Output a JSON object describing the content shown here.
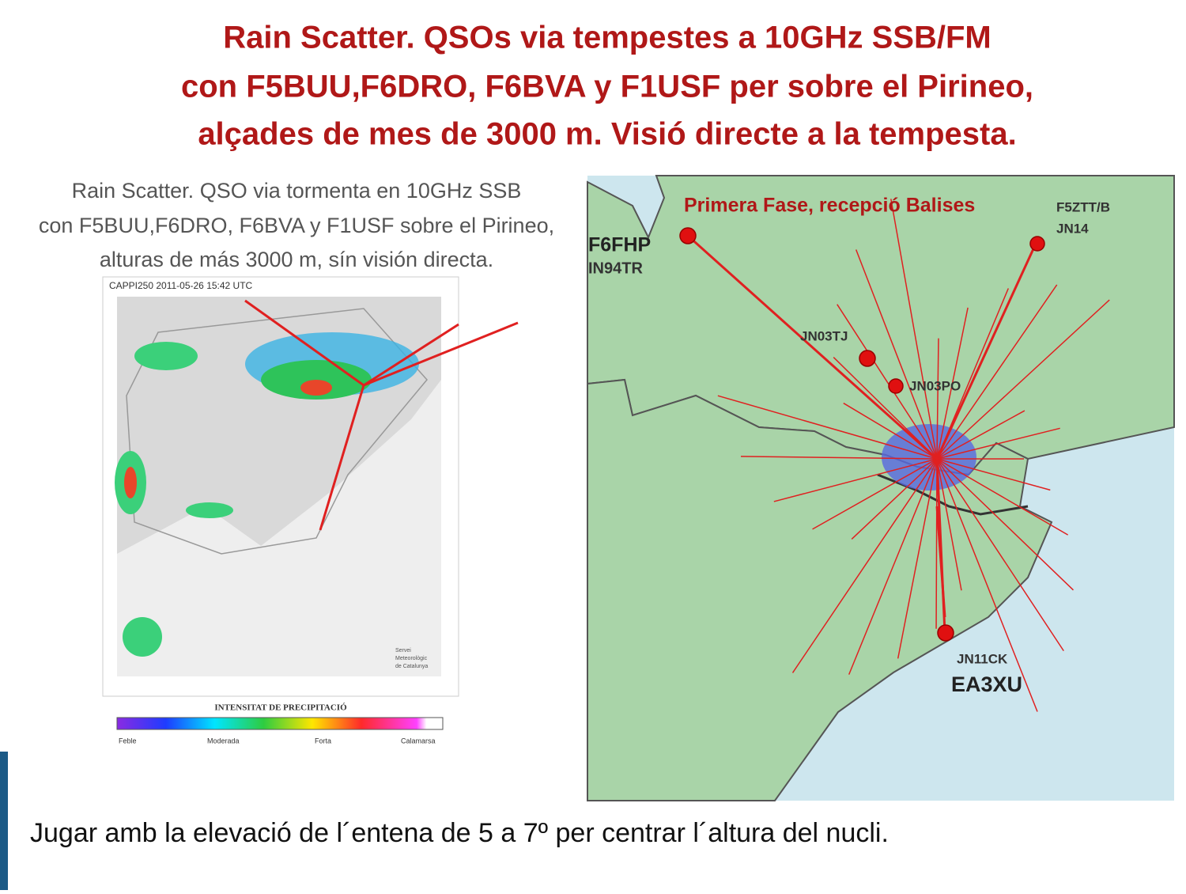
{
  "header": {
    "title_lines": [
      "Rain Scatter. QSOs via tempestes a 10GHz SSB/FM",
      "con F5BUU,F6DRO, F6BVA y F1USF per sobre el Pirineo,",
      "alçades de mes de 3000 m. Visió directe a la tempesta."
    ]
  },
  "left_panel": {
    "caption_lines": [
      "Rain Scatter. QSO via tormenta en 10GHz SSB",
      "con F5BUU,F6DRO, F6BVA y F1USF sobre el Pirineo,",
      "alturas de más 3000 m, sín visión directa."
    ],
    "radar_stamp": "CAPPI250 2011-05-26 15:42 UTC",
    "credit_lines": [
      "Servei",
      "Meteorològic",
      "de Catalunya"
    ],
    "legend": {
      "title": "INTENSITAT DE PRECIPITACIÓ",
      "labels": [
        "Feble",
        "Moderada",
        "Forta",
        "Calamarsa"
      ]
    }
  },
  "right_panel": {
    "heading": "Primera Fase, recepció Balises",
    "stations": [
      {
        "call": "F5ZTT/B",
        "locator": "JN14"
      },
      {
        "call": "F6FHP",
        "locator": "IN94TR"
      },
      {
        "locator": "JN03TJ"
      },
      {
        "locator": "JN03PO"
      },
      {
        "locator": "JN11CK",
        "call": "EA3XU"
      }
    ]
  },
  "footer": {
    "text": "Jugar amb la elevació de l´entena de 5 a 7º per centrar l´altura del nucli."
  }
}
